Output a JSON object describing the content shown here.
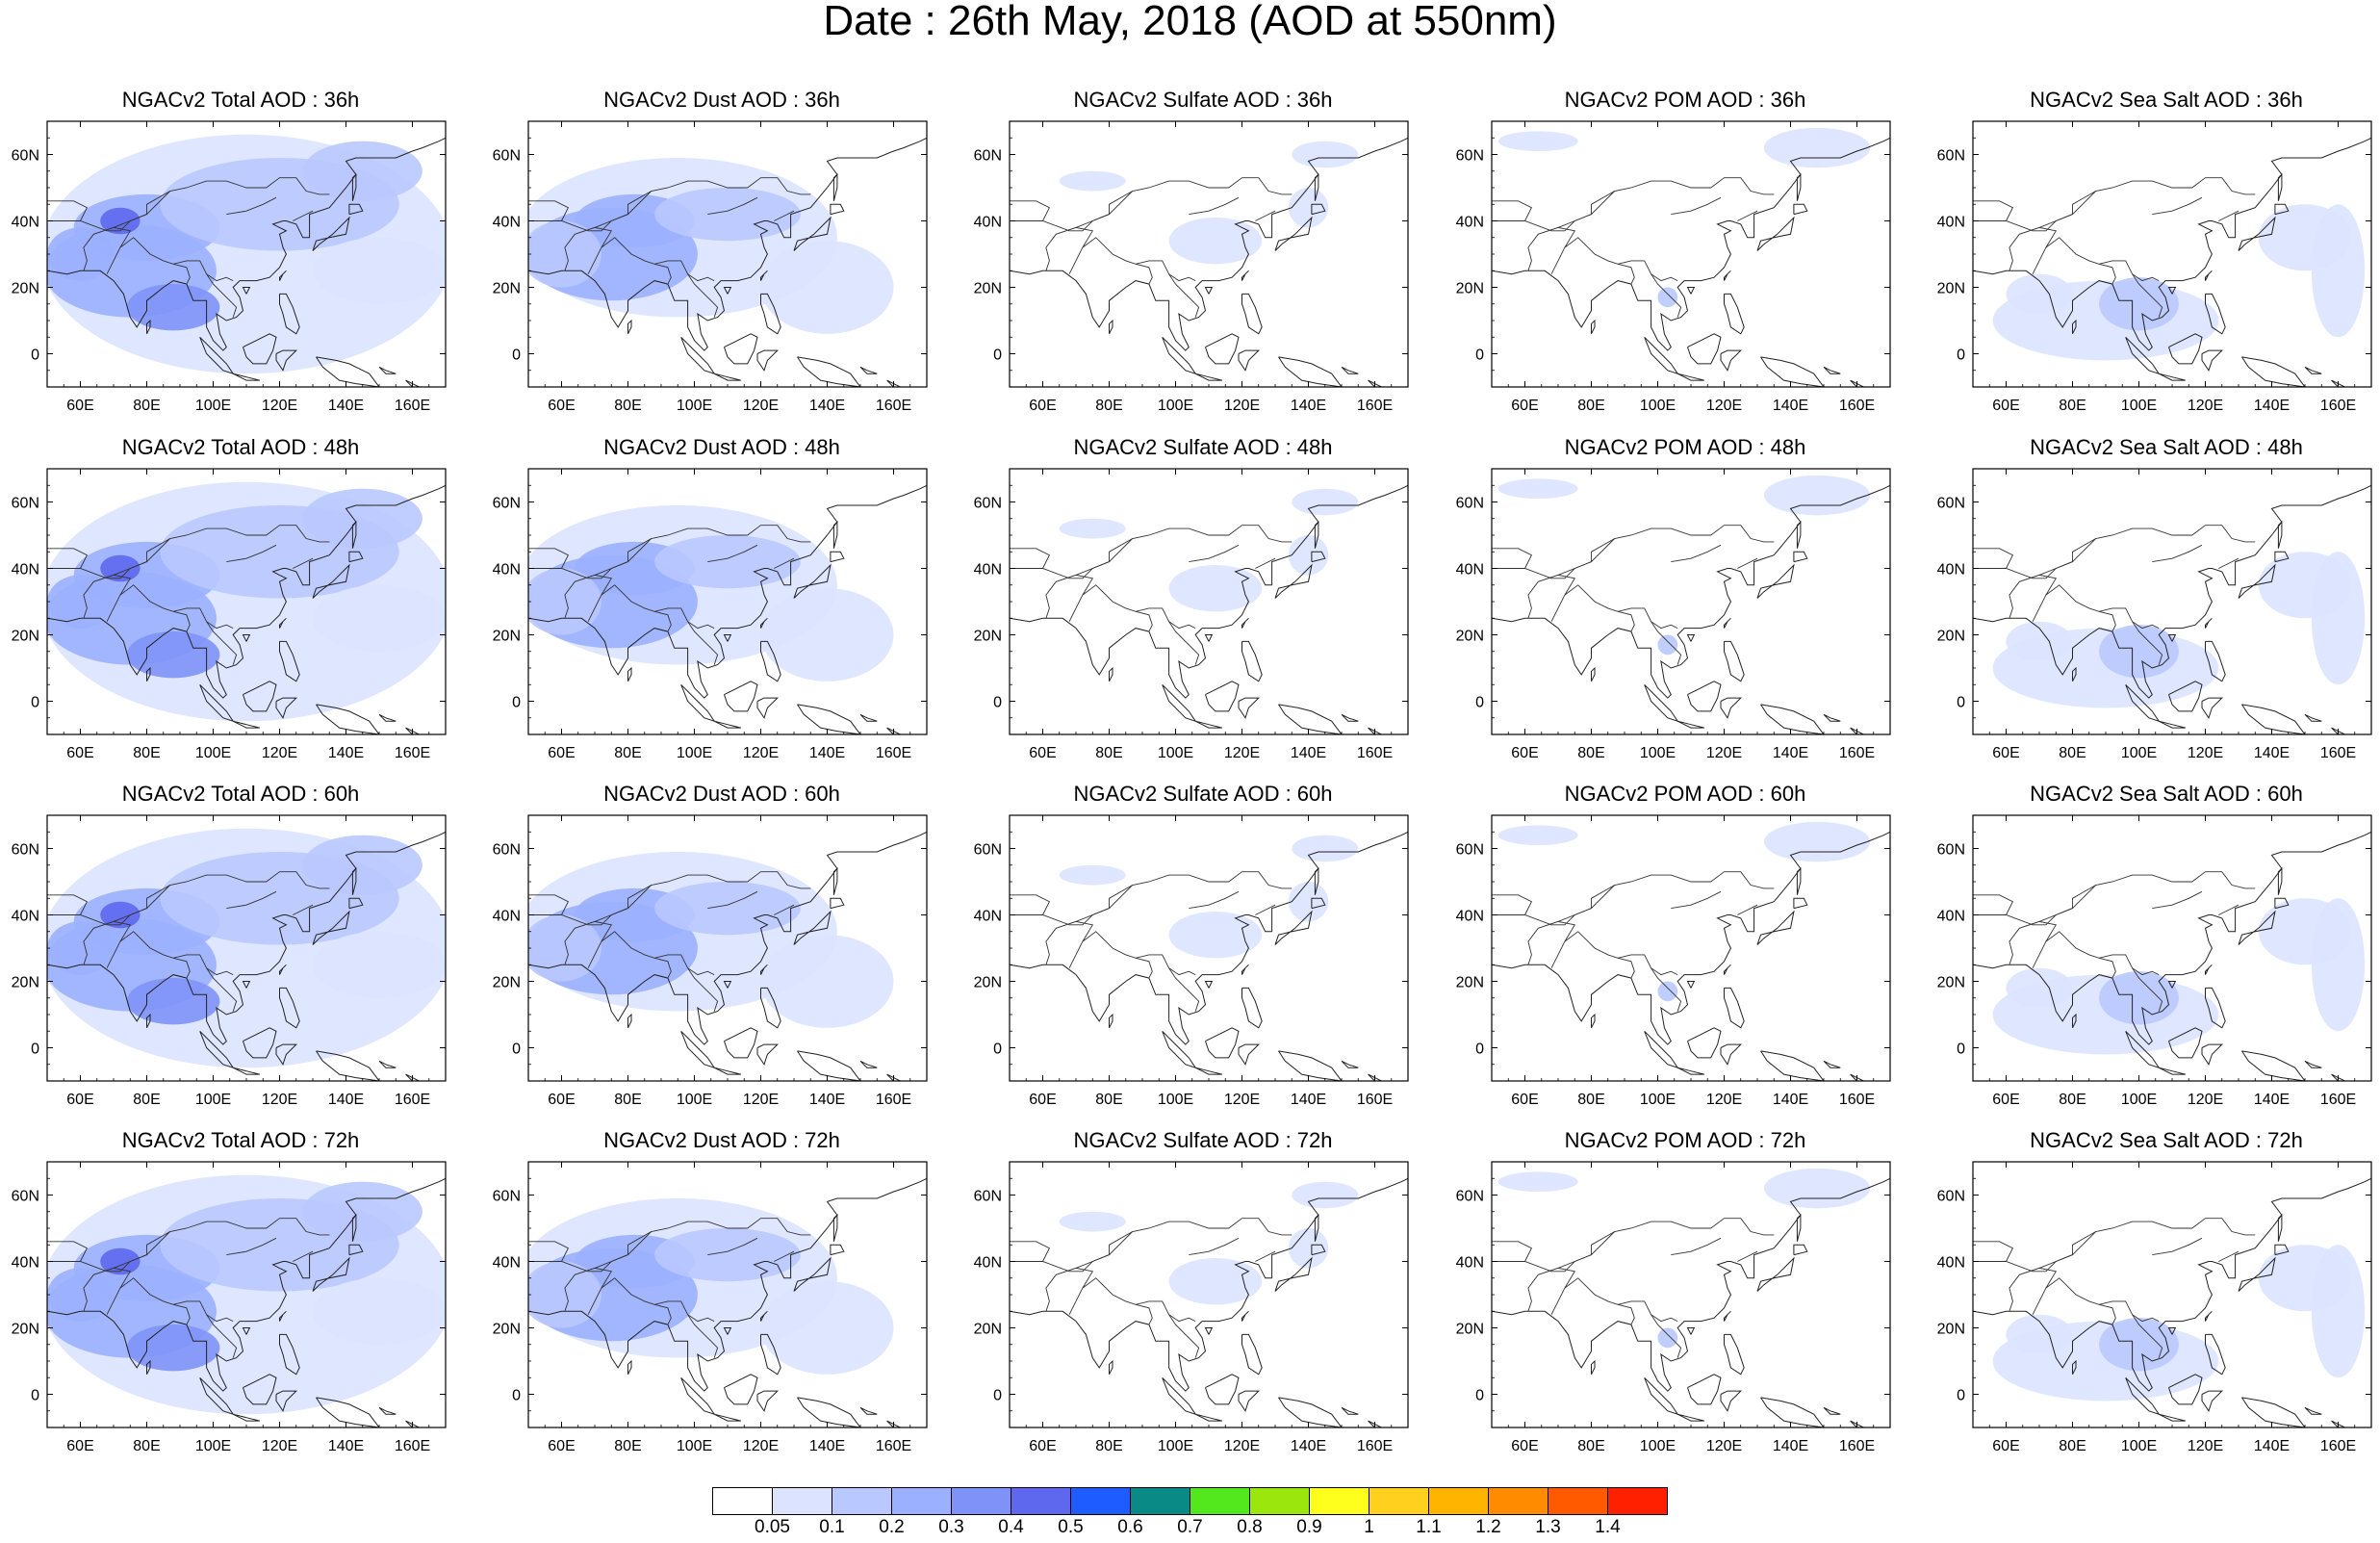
{
  "title": "Date : 26th May, 2018 (AOD at 550nm)",
  "x_ticks": [
    "60E",
    "80E",
    "100E",
    "120E",
    "140E",
    "160E"
  ],
  "y_ticks": [
    "60N",
    "40N",
    "20N",
    "0"
  ],
  "colorbar": {
    "labels": [
      "0.05",
      "0.1",
      "0.2",
      "0.3",
      "0.4",
      "0.5",
      "0.6",
      "0.7",
      "0.8",
      "0.9",
      "1",
      "1.1",
      "1.2",
      "1.3",
      "1.4"
    ],
    "colors": [
      "#ffffff",
      "#dbe3ff",
      "#b9c8ff",
      "#9bb0ff",
      "#7f92f8",
      "#5e68ee",
      "#1e5cff",
      "#0a8a86",
      "#53e81e",
      "#9be60d",
      "#ffff1e",
      "#ffd11e",
      "#ffb400",
      "#ff8c00",
      "#ff5a00",
      "#ff2000"
    ]
  },
  "panels": [
    {
      "title": "NGACv2 Total AOD : 36h",
      "type": "total"
    },
    {
      "title": "NGACv2 Dust AOD : 36h",
      "type": "dust"
    },
    {
      "title": "NGACv2 Sulfate AOD : 36h",
      "type": "sulfate"
    },
    {
      "title": "NGACv2 POM AOD : 36h",
      "type": "pom"
    },
    {
      "title": "NGACv2 Sea Salt AOD : 36h",
      "type": "seasalt"
    },
    {
      "title": "NGACv2 Total AOD : 48h",
      "type": "total"
    },
    {
      "title": "NGACv2 Dust AOD : 48h",
      "type": "dust"
    },
    {
      "title": "NGACv2 Sulfate AOD : 48h",
      "type": "sulfate"
    },
    {
      "title": "NGACv2 POM AOD : 48h",
      "type": "pom"
    },
    {
      "title": "NGACv2 Sea Salt AOD : 48h",
      "type": "seasalt"
    },
    {
      "title": "NGACv2 Total AOD : 60h",
      "type": "total"
    },
    {
      "title": "NGACv2 Dust AOD : 60h",
      "type": "dust"
    },
    {
      "title": "NGACv2 Sulfate AOD : 60h",
      "type": "sulfate"
    },
    {
      "title": "NGACv2 POM AOD : 60h",
      "type": "pom"
    },
    {
      "title": "NGACv2 Sea Salt AOD : 60h",
      "type": "seasalt"
    },
    {
      "title": "NGACv2 Total AOD : 72h",
      "type": "total"
    },
    {
      "title": "NGACv2 Dust AOD : 72h",
      "type": "dust"
    },
    {
      "title": "NGACv2 Sulfate AOD : 72h",
      "type": "sulfate"
    },
    {
      "title": "NGACv2 POM AOD : 72h",
      "type": "pom"
    },
    {
      "title": "NGACv2 Sea Salt  AOD : 72h",
      "type": "seasalt"
    }
  ]
}
